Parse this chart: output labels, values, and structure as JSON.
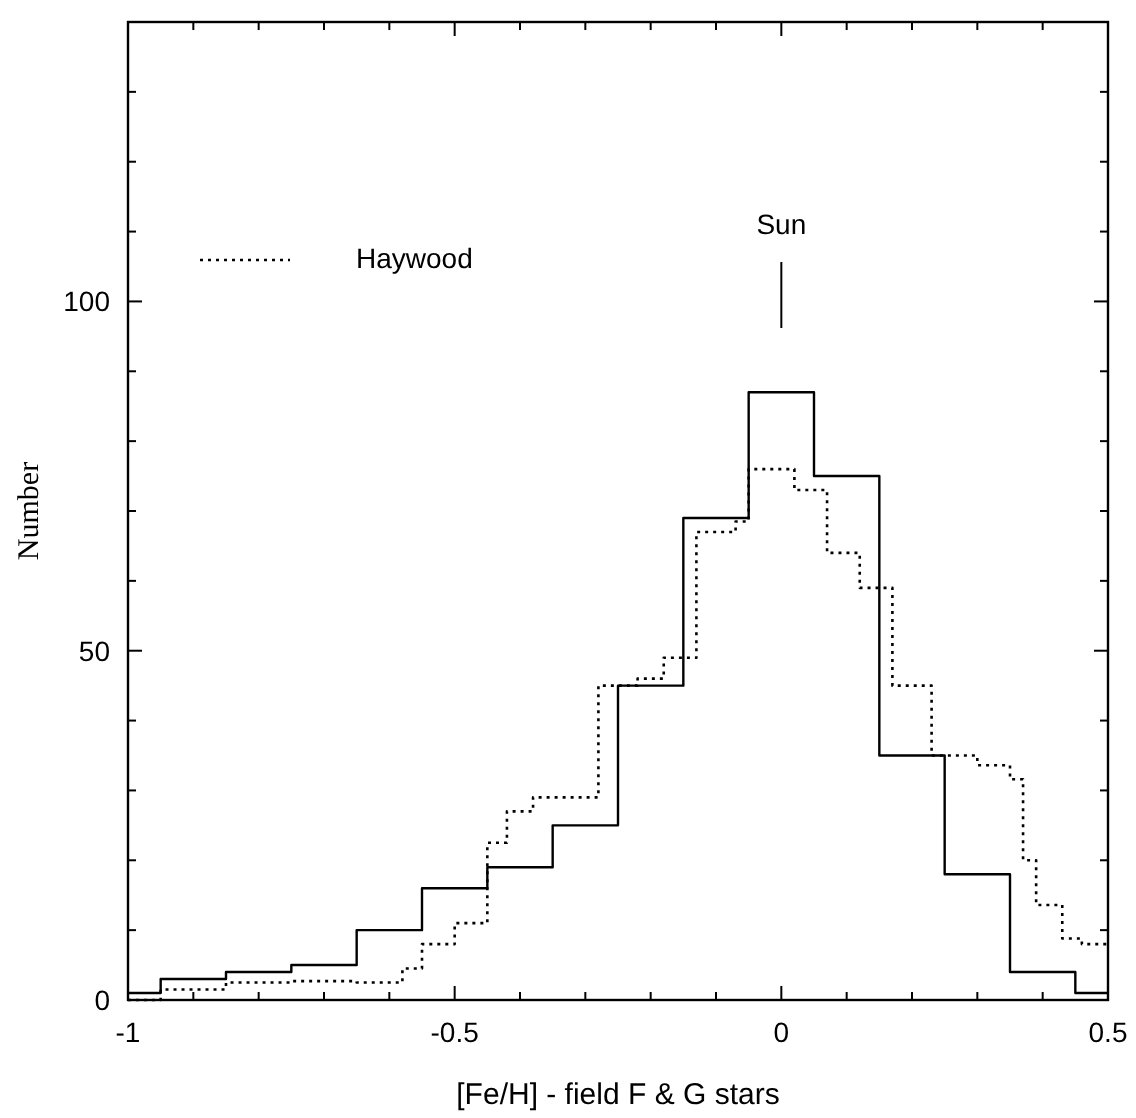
{
  "chart_data": {
    "type": "step",
    "xlabel": "[Fe/H] - field F & G stars",
    "ylabel": "Number",
    "xlim": [
      -1,
      0.5
    ],
    "ylim": [
      0,
      140
    ],
    "xticks": [
      -1,
      {
        "value": -0.9,
        "label": null
      },
      {
        "value": -0.8,
        "label": null
      },
      {
        "value": -0.7,
        "label": null
      },
      {
        "value": -0.6,
        "label": null
      },
      -0.5,
      {
        "value": -0.4,
        "label": null
      },
      {
        "value": -0.3,
        "label": null
      },
      {
        "value": -0.2,
        "label": null
      },
      {
        "value": -0.1,
        "label": null
      },
      0,
      {
        "value": 0.1,
        "label": null
      },
      {
        "value": 0.2,
        "label": null
      },
      {
        "value": 0.3,
        "label": null
      },
      {
        "value": 0.4,
        "label": null
      },
      0.5
    ],
    "yticks": [
      0,
      {
        "value": 10,
        "label": null
      },
      {
        "value": 20,
        "label": null
      },
      {
        "value": 30,
        "label": null
      },
      {
        "value": 40,
        "label": null
      },
      50,
      {
        "value": 60,
        "label": null
      },
      {
        "value": 70,
        "label": null
      },
      {
        "value": 80,
        "label": null
      },
      {
        "value": 90,
        "label": null
      },
      100,
      {
        "value": 110,
        "label": null
      },
      {
        "value": 120,
        "label": null
      },
      {
        "value": 130,
        "label": null
      }
    ],
    "legend": "top left",
    "marker": "none",
    "ref_lines": [
      {
        "axis": "x",
        "value": 0,
        "label": "Sun",
        "color": "#000000"
      }
    ],
    "series": [
      {
        "color": "#000000",
        "line_style": "solid",
        "x": [
          -1,
          -0.95,
          -0.85,
          -0.75,
          -0.65,
          -0.55,
          -0.45,
          -0.35,
          -0.25,
          -0.15,
          -0.05,
          0.05,
          0.15,
          0.25,
          0.35,
          0.45,
          0.5
        ],
        "values": [
          1,
          3,
          4,
          5,
          10,
          16,
          19,
          25,
          45,
          69,
          87,
          75,
          35,
          18,
          4,
          1,
          1
        ]
      },
      {
        "name": "Haywood",
        "color": "#000000",
        "line_style": "dotted",
        "x": [
          -1,
          -0.95,
          -0.85,
          -0.75,
          -0.65,
          -0.58,
          -0.55,
          -0.5,
          -0.45,
          -0.42,
          -0.38,
          -0.28,
          -0.22,
          -0.18,
          -0.13,
          -0.07,
          -0.05,
          0.02,
          0.07,
          0.12,
          0.17,
          0.23,
          0.3,
          0.35,
          0.37,
          0.39,
          0.43,
          0.46,
          0.5
        ],
        "values": [
          0,
          1.5,
          2.5,
          2.7,
          2.5,
          4.5,
          8,
          11,
          22.5,
          27,
          29,
          45,
          46,
          49,
          67,
          68.5,
          76,
          73,
          64,
          59,
          45,
          35,
          33.6,
          31.6,
          20,
          13.6,
          8.8,
          8,
          8
        ]
      }
    ]
  }
}
